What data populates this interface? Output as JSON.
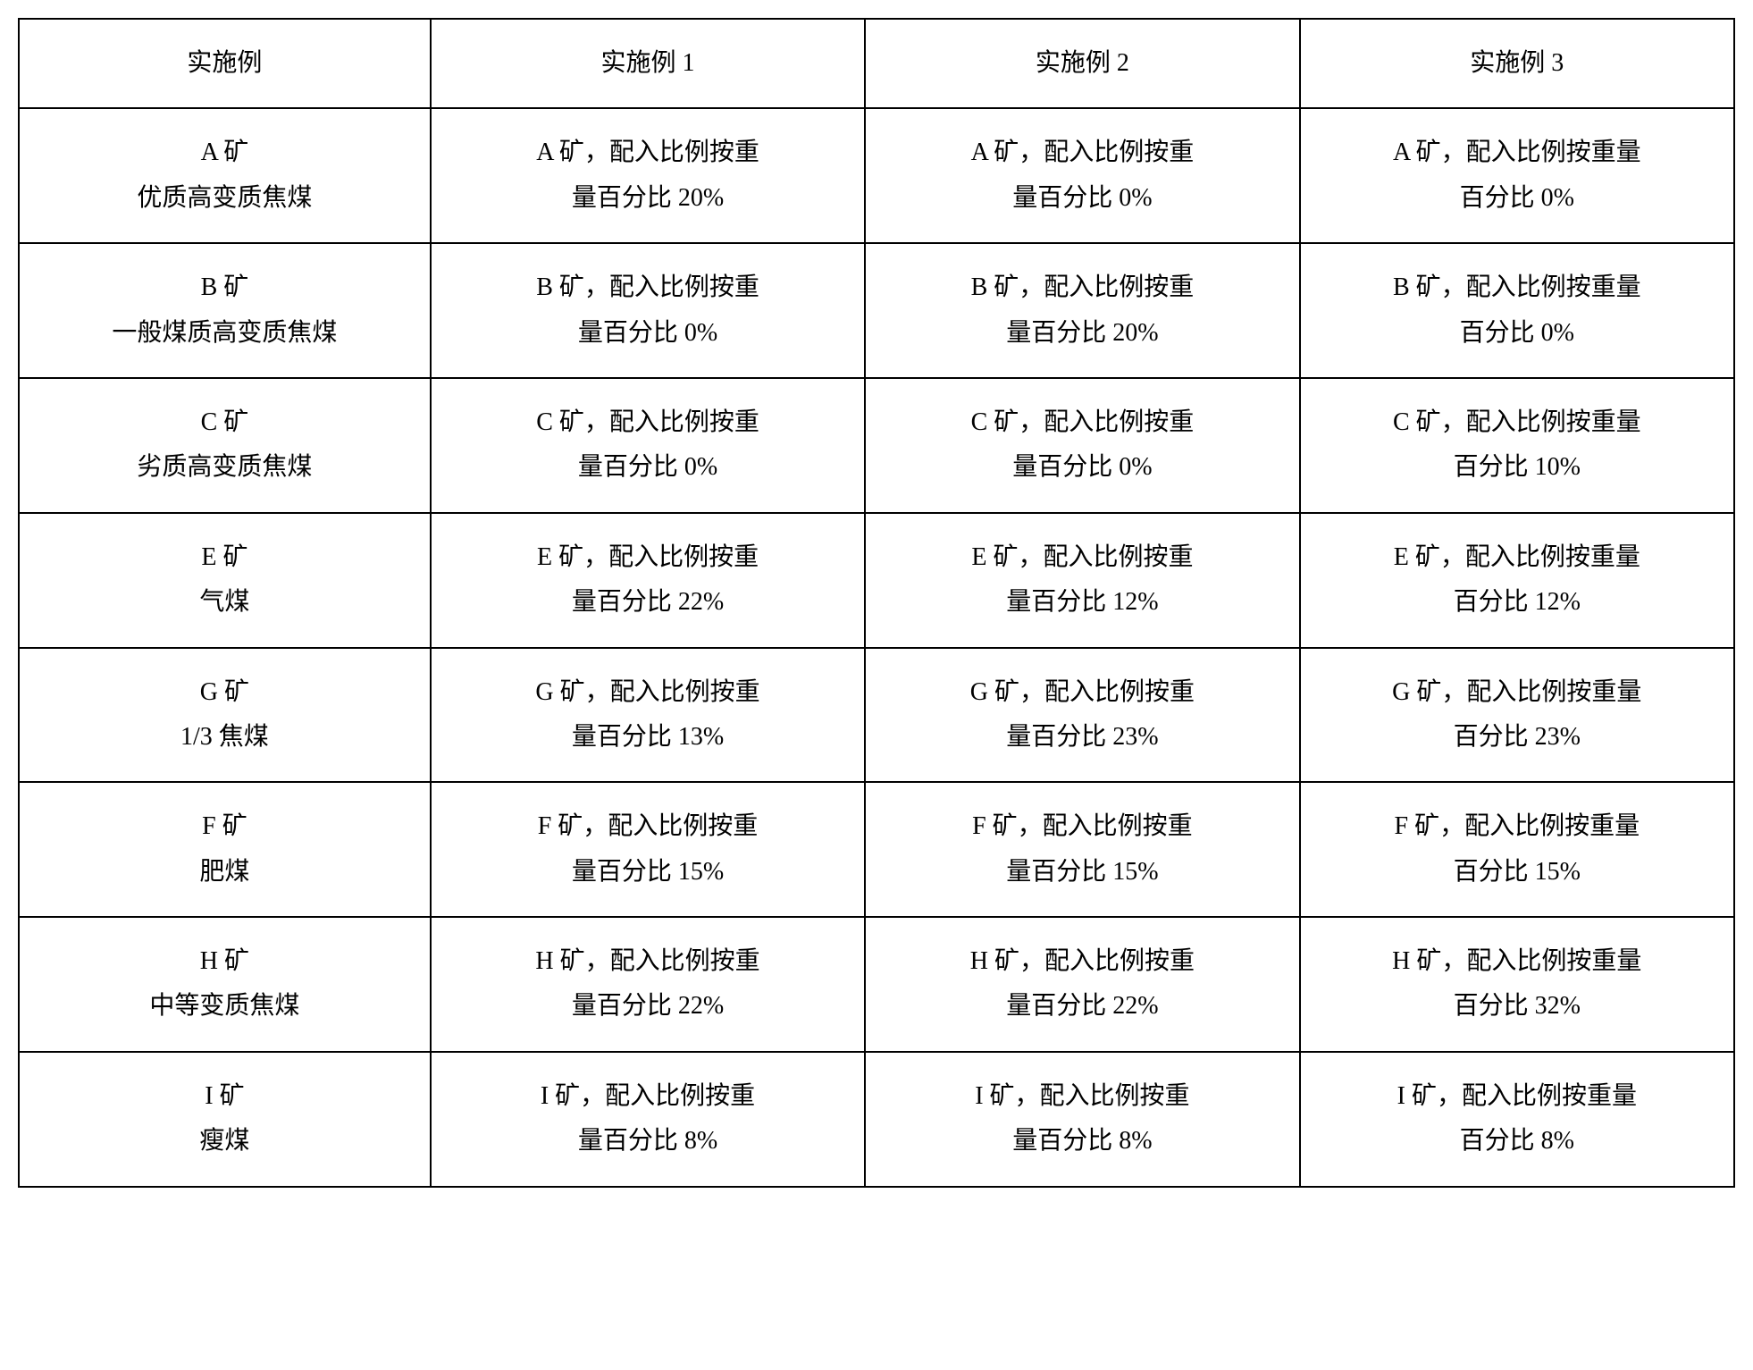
{
  "table": {
    "type": "table",
    "border_color": "#000000",
    "background_color": "#ffffff",
    "text_color": "#000000",
    "font_size_pt": 28,
    "columns": [
      {
        "label": "实施例",
        "width_pct": 24
      },
      {
        "label": "实施例 1",
        "width_pct": 25.33
      },
      {
        "label": "实施例 2",
        "width_pct": 25.33
      },
      {
        "label": "实施例 3",
        "width_pct": 25.33
      }
    ],
    "rows": [
      {
        "label_line1": "A 矿",
        "label_line2": "优质高变质焦煤",
        "c1_line1": "A 矿，配入比例按重",
        "c1_line2": "量百分比 20%",
        "c2_line1": "A 矿，配入比例按重",
        "c2_line2": "量百分比 0%",
        "c3_line1": "A 矿，配入比例按重量",
        "c3_line2": "百分比 0%"
      },
      {
        "label_line1": "B 矿",
        "label_line2": "一般煤质高变质焦煤",
        "c1_line1": "B 矿，配入比例按重",
        "c1_line2": "量百分比 0%",
        "c2_line1": "B 矿，配入比例按重",
        "c2_line2": "量百分比 20%",
        "c3_line1": "B 矿，配入比例按重量",
        "c3_line2": "百分比 0%"
      },
      {
        "label_line1": "C 矿",
        "label_line2": "劣质高变质焦煤",
        "c1_line1": "C 矿，配入比例按重",
        "c1_line2": "量百分比 0%",
        "c2_line1": "C 矿，配入比例按重",
        "c2_line2": "量百分比 0%",
        "c3_line1": "C 矿，配入比例按重量",
        "c3_line2": "百分比 10%"
      },
      {
        "label_line1": "E 矿",
        "label_line2": "气煤",
        "c1_line1": "E 矿，配入比例按重",
        "c1_line2": "量百分比 22%",
        "c2_line1": "E 矿，配入比例按重",
        "c2_line2": "量百分比 12%",
        "c3_line1": "E 矿，配入比例按重量",
        "c3_line2": "百分比 12%"
      },
      {
        "label_line1": "G 矿",
        "label_line2": "1/3 焦煤",
        "c1_line1": "G 矿，配入比例按重",
        "c1_line2": "量百分比 13%",
        "c2_line1": "G 矿，配入比例按重",
        "c2_line2": "量百分比 23%",
        "c3_line1": "G 矿，配入比例按重量",
        "c3_line2": "百分比 23%"
      },
      {
        "label_line1": "F 矿",
        "label_line2": "肥煤",
        "c1_line1": "F 矿，配入比例按重",
        "c1_line2": "量百分比 15%",
        "c2_line1": "F 矿，配入比例按重",
        "c2_line2": "量百分比 15%",
        "c3_line1": "F 矿，配入比例按重量",
        "c3_line2": "百分比 15%"
      },
      {
        "label_line1": "H 矿",
        "label_line2": "中等变质焦煤",
        "c1_line1": "H 矿，配入比例按重",
        "c1_line2": "量百分比 22%",
        "c2_line1": "H 矿，配入比例按重",
        "c2_line2": "量百分比 22%",
        "c3_line1": "H 矿，配入比例按重量",
        "c3_line2": "百分比 32%"
      },
      {
        "label_line1": "I 矿",
        "label_line2": "瘦煤",
        "c1_line1": "I 矿，配入比例按重",
        "c1_line2": "量百分比 8%",
        "c2_line1": "I 矿，配入比例按重",
        "c2_line2": "量百分比 8%",
        "c3_line1": "I 矿，配入比例按重量",
        "c3_line2": "百分比 8%"
      }
    ]
  }
}
